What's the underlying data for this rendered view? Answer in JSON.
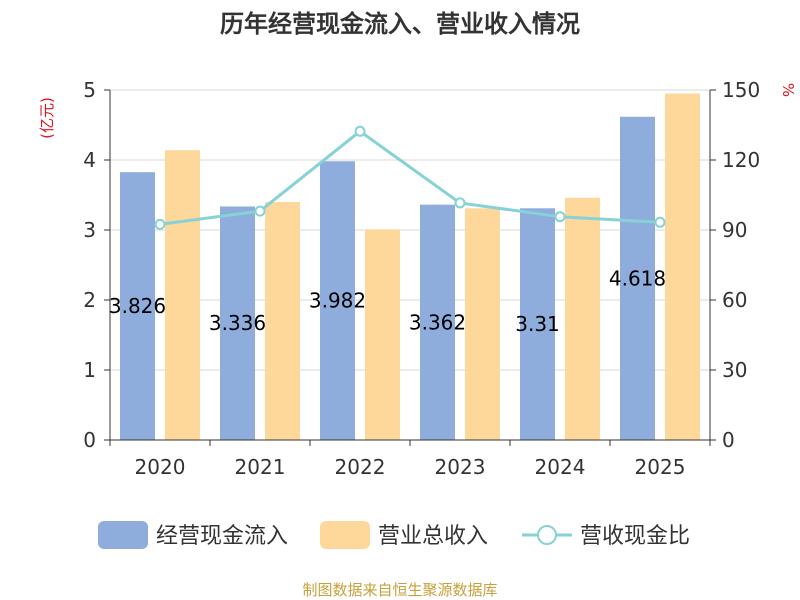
{
  "chart_data": {
    "type": "bar",
    "title": "历年经营现金流入、营业收入情况",
    "categories": [
      "2020",
      "2021",
      "2022",
      "2023",
      "2024",
      "2025"
    ],
    "y_left": {
      "unit": "(亿元)",
      "lim": [
        0,
        5
      ],
      "ticks": [
        "0",
        "1",
        "2",
        "3",
        "4",
        "5"
      ]
    },
    "y_right": {
      "unit": "%",
      "lim": [
        0,
        150
      ],
      "ticks": [
        "0",
        "30",
        "60",
        "90",
        "120",
        "150"
      ]
    },
    "series": [
      {
        "name": "经营现金流入",
        "kind": "bar",
        "axis": "left",
        "color": "#8eacdc",
        "values": [
          3.826,
          3.336,
          3.982,
          3.362,
          3.31,
          4.618
        ],
        "labels": [
          "3.826",
          "3.336",
          "3.982",
          "3.362",
          "3.31",
          "4.618"
        ]
      },
      {
        "name": "营业总收入",
        "kind": "bar",
        "axis": "left",
        "color": "#fdd89a",
        "values": [
          4.14,
          3.4,
          3.01,
          3.31,
          3.46,
          4.95
        ]
      },
      {
        "name": "营收现金比",
        "kind": "line",
        "axis": "right",
        "color": "#86d2d6",
        "values": [
          92.4,
          98.1,
          132.3,
          101.6,
          95.7,
          93.3
        ]
      }
    ],
    "grid": true,
    "legend_position": "bottom",
    "source": "制图数据来自恒生聚源数据库"
  }
}
